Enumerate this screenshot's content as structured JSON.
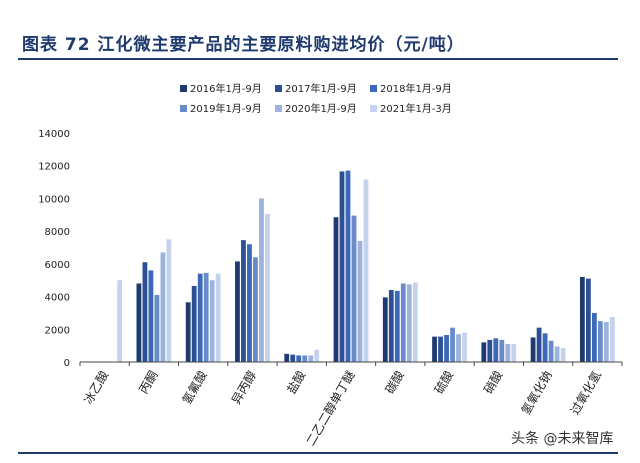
{
  "header": {
    "title": "图表 72  江化微主要产品的主要原料购进均价（元/吨）"
  },
  "watermark": "头条 @未来智库",
  "chart_data": {
    "type": "bar",
    "categories": [
      "冰乙酸",
      "丙酮",
      "氢氟酸",
      "异丙醇",
      "盐酸",
      "二乙二醇单丁醚",
      "碳酸",
      "硫酸",
      "硝酸",
      "氢氧化钠",
      "过氧化氢"
    ],
    "series": [
      {
        "name": "2016年1月-9月",
        "color": "#1f3a6e",
        "values": [
          null,
          4800,
          3650,
          6150,
          500,
          8850,
          3950,
          1550,
          1200,
          1500,
          5200
        ]
      },
      {
        "name": "2017年1月-9月",
        "color": "#2c4f95",
        "values": [
          null,
          6100,
          4650,
          7450,
          450,
          11650,
          4400,
          1550,
          1350,
          2100,
          5100
        ]
      },
      {
        "name": "2018年1月-9月",
        "color": "#3b68b8",
        "values": [
          null,
          5600,
          5400,
          7200,
          400,
          11700,
          4350,
          1650,
          1450,
          1750,
          3000
        ]
      },
      {
        "name": "2019年1月-9月",
        "color": "#6a8bc9",
        "values": [
          null,
          4100,
          5450,
          6400,
          400,
          8950,
          4800,
          2100,
          1350,
          1300,
          2500
        ]
      },
      {
        "name": "2020年1月-9月",
        "color": "#9db3dd",
        "values": [
          null,
          6700,
          5000,
          10000,
          400,
          7400,
          4750,
          1700,
          1100,
          950,
          2450
        ]
      },
      {
        "name": "2021年1月-3月",
        "color": "#c5d2ee",
        "values": [
          5000,
          7500,
          5400,
          9050,
          750,
          11150,
          4850,
          1800,
          1100,
          850,
          2750
        ]
      }
    ],
    "ylim": [
      0,
      14000
    ],
    "yticks": [
      "0",
      "2000",
      "4000",
      "6000",
      "8000",
      "10000",
      "12000",
      "14000"
    ],
    "grid": false,
    "legend_position": "top"
  }
}
